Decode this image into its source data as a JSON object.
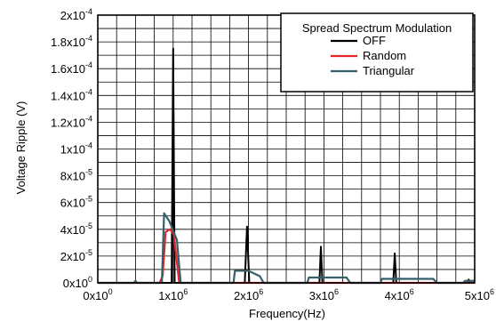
{
  "chart_data": {
    "type": "line",
    "xlabel": "Frequency(Hz)",
    "ylabel": "Voltage Ripple (V)",
    "xlim": [
      0,
      5000000
    ],
    "ylim": [
      0,
      0.0002
    ],
    "grid": true,
    "legend_position": "top-right",
    "legend_title": "Spread Spectrum Modulation",
    "x_ticks": [
      {
        "value": 0,
        "mantissa": "0x10",
        "exponent": "0"
      },
      {
        "value": 1000000,
        "mantissa": "1x10",
        "exponent": "6"
      },
      {
        "value": 2000000,
        "mantissa": "2x10",
        "exponent": "6"
      },
      {
        "value": 3000000,
        "mantissa": "3x10",
        "exponent": "6"
      },
      {
        "value": 4000000,
        "mantissa": "4x10",
        "exponent": "6"
      },
      {
        "value": 5000000,
        "mantissa": "5x10",
        "exponent": "6"
      }
    ],
    "y_ticks": [
      {
        "value": 0,
        "mantissa": "0x10",
        "exponent": "0"
      },
      {
        "value": 2e-05,
        "mantissa": "2x10",
        "exponent": "-5"
      },
      {
        "value": 4e-05,
        "mantissa": "4x10",
        "exponent": "-5"
      },
      {
        "value": 6e-05,
        "mantissa": "6x10",
        "exponent": "-5"
      },
      {
        "value": 8e-05,
        "mantissa": "8x10",
        "exponent": "-5"
      },
      {
        "value": 0.0001,
        "mantissa": "1x10",
        "exponent": "-4"
      },
      {
        "value": 0.00012,
        "mantissa": "1.2x10",
        "exponent": "-4"
      },
      {
        "value": 0.00014,
        "mantissa": "1.4x10",
        "exponent": "-4"
      },
      {
        "value": 0.00016,
        "mantissa": "1.6x10",
        "exponent": "-4"
      },
      {
        "value": 0.00018,
        "mantissa": "1.8x10",
        "exponent": "-4"
      },
      {
        "value": 0.0002,
        "mantissa": "2x10",
        "exponent": "-4"
      }
    ],
    "series": [
      {
        "name": "OFF",
        "color": "#000000",
        "points": [
          [
            0,
            0
          ],
          [
            490000,
            0
          ],
          [
            500000,
            1.5e-06
          ],
          [
            510000,
            0
          ],
          [
            980000,
            0
          ],
          [
            1000000,
            0.000175
          ],
          [
            1020000,
            0
          ],
          [
            1950000,
            0
          ],
          [
            1980000,
            4.2e-05
          ],
          [
            2010000,
            0
          ],
          [
            2940000,
            0
          ],
          [
            2960000,
            2.7e-05
          ],
          [
            2980000,
            0
          ],
          [
            3920000,
            0
          ],
          [
            3940000,
            2.2e-05
          ],
          [
            3960000,
            0
          ],
          [
            4900000,
            0
          ],
          [
            4920000,
            2.5e-06
          ],
          [
            4940000,
            0
          ],
          [
            5000000,
            0
          ]
        ]
      },
      {
        "name": "Random",
        "color": "#e8262a",
        "points": [
          [
            0,
            0
          ],
          [
            820000,
            0
          ],
          [
            860000,
            5e-06
          ],
          [
            900000,
            3.8e-05
          ],
          [
            960000,
            4e-05
          ],
          [
            1010000,
            3.6e-05
          ],
          [
            1080000,
            0
          ],
          [
            5000000,
            0
          ]
        ]
      },
      {
        "name": "Triangular",
        "color": "#35606a",
        "points": [
          [
            0,
            0
          ],
          [
            480000,
            0
          ],
          [
            500000,
            1.5e-06
          ],
          [
            520000,
            0
          ],
          [
            850000,
            0
          ],
          [
            880000,
            5.2e-05
          ],
          [
            950000,
            4.6e-05
          ],
          [
            1050000,
            3.2e-05
          ],
          [
            1100000,
            0
          ],
          [
            1800000,
            0
          ],
          [
            1820000,
            9e-06
          ],
          [
            2000000,
            9e-06
          ],
          [
            2150000,
            5e-06
          ],
          [
            2200000,
            0
          ],
          [
            2780000,
            0
          ],
          [
            2800000,
            4e-06
          ],
          [
            3300000,
            4e-06
          ],
          [
            3350000,
            0
          ],
          [
            3750000,
            0
          ],
          [
            3770000,
            3e-06
          ],
          [
            4450000,
            3e-06
          ],
          [
            4500000,
            0
          ],
          [
            4850000,
            0
          ],
          [
            4870000,
            1.5e-06
          ],
          [
            5000000,
            1.5e-06
          ]
        ]
      }
    ]
  }
}
